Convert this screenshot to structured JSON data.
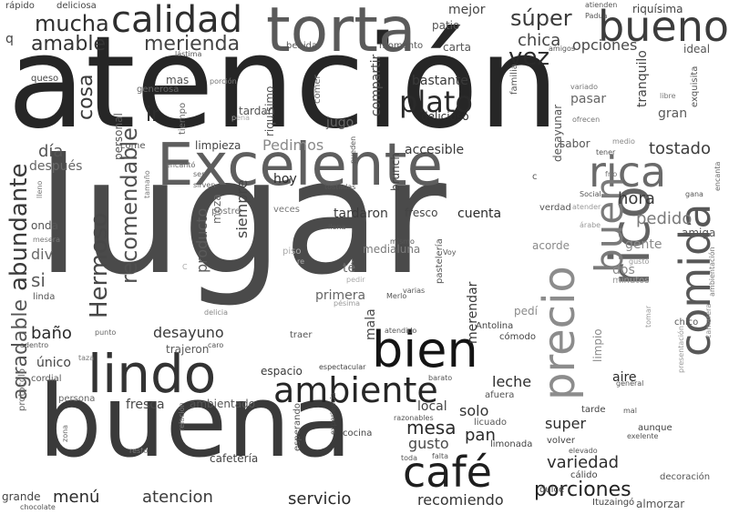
{
  "words": [
    {
      "text": "atención",
      "color": "#262626"
    },
    {
      "text": "lugar",
      "color": "#4a4a4a"
    },
    {
      "text": "buena",
      "color": "#3a3a3a"
    },
    {
      "text": "Excelente",
      "color": "#5e5e5e"
    },
    {
      "text": "torta",
      "color": "#5a5a5a"
    },
    {
      "text": "calidad",
      "color": "#2e2e2e"
    },
    {
      "text": "bueno",
      "color": "#3c3c3c"
    },
    {
      "text": "rica",
      "color": "#6a6a6a"
    },
    {
      "text": "bien",
      "color": "#141414"
    },
    {
      "text": "lindo",
      "color": "#333333"
    },
    {
      "text": "ambiente",
      "color": "#262626"
    },
    {
      "text": "café",
      "color": "#1e1e1e"
    },
    {
      "text": "rico",
      "color": "#626262"
    },
    {
      "text": "comida",
      "color": "#585858"
    },
    {
      "text": "precio",
      "color": "#8c8c8c"
    },
    {
      "text": "buen",
      "color": "#7a7a7a"
    },
    {
      "text": "abundante",
      "color": "#3a3a3a"
    },
    {
      "text": "Hermoso",
      "color": "#474747"
    },
    {
      "text": "recomendable",
      "color": "#505050"
    },
    {
      "text": "agradable",
      "color": "#555555"
    },
    {
      "text": "plato",
      "color": "#2a2a2a"
    },
    {
      "text": "mucha",
      "color": "#2f2f2f"
    },
    {
      "text": "amable",
      "color": "#333333"
    },
    {
      "text": "merienda",
      "color": "#454545"
    },
    {
      "text": "súper",
      "color": "#3a3a3a"
    },
    {
      "text": "vez",
      "color": "#2a2a2a"
    },
    {
      "text": "chica",
      "color": "#444444"
    },
    {
      "text": "opciones",
      "color": "#4a4a4a"
    },
    {
      "text": "tostado",
      "color": "#3d3d3d"
    },
    {
      "text": "pedido",
      "color": "#7a7a7a"
    },
    {
      "text": "hora",
      "color": "#3a3a3a"
    },
    {
      "text": "cosa",
      "color": "#3a3a3a"
    },
    {
      "text": "ir",
      "color": "#2c2c2c"
    },
    {
      "text": "día",
      "color": "#555555"
    },
    {
      "text": "después",
      "color": "#666666"
    },
    {
      "text": "Pedimos",
      "color": "#8a8a8a"
    },
    {
      "text": "hoy",
      "color": "#2a2a2a"
    },
    {
      "text": "siempre",
      "color": "#444444"
    },
    {
      "text": "producto",
      "color": "#5a5a5a"
    },
    {
      "text": "moza",
      "color": "#666666"
    },
    {
      "text": "desayuno",
      "color": "#3a3a3a"
    },
    {
      "text": "baño",
      "color": "#2a2a2a"
    },
    {
      "text": "si",
      "color": "#5a5a5a"
    },
    {
      "text": "div",
      "color": "#6a6a6a"
    },
    {
      "text": "mesa",
      "color": "#2a2a2a"
    },
    {
      "text": "pan",
      "color": "#2a2a2a"
    },
    {
      "text": "gusto",
      "color": "#4a4a4a"
    },
    {
      "text": "servicio",
      "color": "#2a2a2a"
    },
    {
      "text": "atencion",
      "color": "#3a3a3a"
    },
    {
      "text": "menú",
      "color": "#2a2a2a"
    },
    {
      "text": "porciones",
      "color": "#222222"
    },
    {
      "text": "recomiendo",
      "color": "#333333"
    },
    {
      "text": "variedad",
      "color": "#2d2d2d"
    },
    {
      "text": "super",
      "color": "#2d2d2d"
    },
    {
      "text": "solo",
      "color": "#333333"
    },
    {
      "text": "leche",
      "color": "#2d2d2d"
    },
    {
      "text": "espacio",
      "color": "#3a3a3a"
    },
    {
      "text": "fresca",
      "color": "#4a4a4a"
    },
    {
      "text": "aire",
      "color": "#2a2a2a"
    },
    {
      "text": "accesible",
      "color": "#3a3a3a"
    },
    {
      "text": "delicioso",
      "color": "#2a2a2a"
    },
    {
      "text": "bastante",
      "color": "#3a3a3a"
    },
    {
      "text": "compartir",
      "color": "#4a4a4a"
    },
    {
      "text": "jugo",
      "color": "#666666"
    },
    {
      "text": "tranquilo",
      "color": "#444444"
    },
    {
      "text": "gran",
      "color": "#5a5a5a"
    },
    {
      "text": "pasar",
      "color": "#666666"
    },
    {
      "text": "desayunar",
      "color": "#555555"
    },
    {
      "text": "limpieza",
      "color": "#444444"
    },
    {
      "text": "merendar",
      "color": "#3a3a3a"
    },
    {
      "text": "cuenta",
      "color": "#2a2a2a"
    },
    {
      "text": "tardaron",
      "color": "#3a3a3a"
    },
    {
      "text": "té",
      "color": "#6a6a6a"
    },
    {
      "text": "medialuna",
      "color": "#7a7a7a"
    },
    {
      "text": "primera",
      "color": "#666666"
    },
    {
      "text": "mala",
      "color": "#4a4a4a"
    },
    {
      "text": "trajeron",
      "color": "#5a5a5a"
    },
    {
      "text": "limpio",
      "color": "#8a8a8a"
    },
    {
      "text": "gente",
      "color": "#8a8a8a"
    },
    {
      "text": "dos",
      "color": "#8a8a8a"
    },
    {
      "text": "pedí",
      "color": "#8a8a8a"
    },
    {
      "text": "acorde",
      "color": "#8a8a8a"
    },
    {
      "text": "amiga",
      "color": "#555555"
    },
    {
      "text": "ambientado",
      "color": "#555555"
    },
    {
      "text": "cafetería",
      "color": "#444444"
    },
    {
      "text": "local",
      "color": "#444444"
    },
    {
      "text": "sabor",
      "color": "#555555"
    },
    {
      "text": "mejor",
      "color": "#444444"
    },
    {
      "text": "carta",
      "color": "#555555"
    },
    {
      "text": "patio",
      "color": "#555555"
    },
    {
      "text": "bebida",
      "color": "#555555"
    },
    {
      "text": "momento",
      "color": "#555555"
    },
    {
      "text": "riquísima",
      "color": "#444444"
    },
    {
      "text": "rápido",
      "color": "#444444"
    },
    {
      "text": "deliciosa",
      "color": "#444444"
    },
    {
      "text": "q",
      "color": "#444444"
    },
    {
      "text": "mas",
      "color": "#555555"
    },
    {
      "text": "generosa",
      "color": "#666666"
    },
    {
      "text": "queso",
      "color": "#444444"
    },
    {
      "text": "porción",
      "color": "#777777"
    },
    {
      "text": "riquísimo",
      "color": "#555555"
    },
    {
      "text": "comer",
      "color": "#666666"
    },
    {
      "text": "tardan",
      "color": "#555555"
    },
    {
      "text": "personal",
      "color": "#555555"
    },
    {
      "text": "come",
      "color": "#555555"
    },
    {
      "text": "encantó",
      "color": "#666666"
    },
    {
      "text": "tiempo",
      "color": "#666666"
    },
    {
      "text": "ideal",
      "color": "#555555"
    },
    {
      "text": "exquisita",
      "color": "#555555"
    },
    {
      "text": "libre",
      "color": "#777777"
    },
    {
      "text": "ofrecen",
      "color": "#777777"
    },
    {
      "text": "variado",
      "color": "#777777"
    },
    {
      "text": "medio",
      "color": "#888888"
    },
    {
      "text": "tener",
      "color": "#555555"
    },
    {
      "text": "frío",
      "color": "#777777"
    },
    {
      "text": "gana",
      "color": "#555555"
    },
    {
      "text": "encanta",
      "color": "#666666"
    },
    {
      "text": "brunch",
      "color": "#444444"
    },
    {
      "text": "fresco",
      "color": "#444444"
    },
    {
      "text": "verdad",
      "color": "#555555"
    },
    {
      "text": "veces",
      "color": "#777777"
    },
    {
      "text": "llena",
      "color": "#555555"
    },
    {
      "text": "pueden",
      "color": "#555555"
    },
    {
      "text": "tostadas",
      "color": "#555555"
    },
    {
      "text": "postre",
      "color": "#777777"
    },
    {
      "text": "sirven",
      "color": "#666666"
    },
    {
      "text": "ser",
      "color": "#666666"
    },
    {
      "text": "onda",
      "color": "#555555"
    },
    {
      "text": "lleno",
      "color": "#777777"
    },
    {
      "text": "tamaño",
      "color": "#777777"
    },
    {
      "text": "mesera",
      "color": "#777777"
    },
    {
      "text": "linda",
      "color": "#555555"
    },
    {
      "text": "punto",
      "color": "#666666"
    },
    {
      "text": "adentro",
      "color": "#555555"
    },
    {
      "text": "taza",
      "color": "#777777"
    },
    {
      "text": "único",
      "color": "#444444"
    },
    {
      "text": "cordial",
      "color": "#555555"
    },
    {
      "text": "persona",
      "color": "#666666"
    },
    {
      "text": "caro",
      "color": "#555555"
    },
    {
      "text": "traer",
      "color": "#555555"
    },
    {
      "text": "Antolina",
      "color": "#444444"
    },
    {
      "text": "cómodo",
      "color": "#444444"
    },
    {
      "text": "pastelería",
      "color": "#555555"
    },
    {
      "text": "Merlo",
      "color": "#555555"
    },
    {
      "text": "varias",
      "color": "#555555"
    },
    {
      "text": "atendido",
      "color": "#555555"
    },
    {
      "text": "espectacular",
      "color": "#444444"
    },
    {
      "text": "barato",
      "color": "#555555"
    },
    {
      "text": "afuera",
      "color": "#555555"
    },
    {
      "text": "licuado",
      "color": "#555555"
    },
    {
      "text": "cocina",
      "color": "#444444"
    },
    {
      "text": "razonables",
      "color": "#555555"
    },
    {
      "text": "limonada",
      "color": "#444444"
    },
    {
      "text": "falta",
      "color": "#555555"
    },
    {
      "text": "toda",
      "color": "#555555"
    },
    {
      "text": "dulce",
      "color": "#444444"
    },
    {
      "text": "cálido",
      "color": "#444444"
    },
    {
      "text": "decoración",
      "color": "#555555"
    },
    {
      "text": "almorzar",
      "color": "#555555"
    },
    {
      "text": "Ituzaingó",
      "color": "#444444"
    },
    {
      "text": "elevado",
      "color": "#555555"
    },
    {
      "text": "exelente",
      "color": "#555555"
    },
    {
      "text": "aunque",
      "color": "#444444"
    },
    {
      "text": "tarde",
      "color": "#444444"
    },
    {
      "text": "mal",
      "color": "#555555"
    },
    {
      "text": "general",
      "color": "#555555"
    },
    {
      "text": "volver",
      "color": "#444444"
    },
    {
      "text": "esperando",
      "color": "#555555"
    },
    {
      "text": "experiencia",
      "color": "#444444"
    },
    {
      "text": "relación",
      "color": "#777777"
    },
    {
      "text": "resto",
      "color": "#777777"
    },
    {
      "text": "zona",
      "color": "#666666"
    },
    {
      "text": "protocolo",
      "color": "#666666"
    },
    {
      "text": "grande",
      "color": "#444444"
    },
    {
      "text": "chocolate",
      "color": "#555555"
    },
    {
      "text": "chico",
      "color": "#555555"
    },
    {
      "text": "ambientación",
      "color": "#777777"
    },
    {
      "text": "minutos",
      "color": "#999999"
    },
    {
      "text": "gustó",
      "color": "#999999"
    },
    {
      "text": "árabe",
      "color": "#999999"
    },
    {
      "text": "atender",
      "color": "#999999"
    },
    {
      "text": "Social",
      "color": "#555555"
    },
    {
      "text": "tomar",
      "color": "#999999"
    },
    {
      "text": "camarera",
      "color": "#888888"
    },
    {
      "text": "presentación",
      "color": "#999999"
    },
    {
      "text": "mismo",
      "color": "#555555"
    },
    {
      "text": "piso",
      "color": "#aaaaaa"
    },
    {
      "text": "re",
      "color": "#aaaaaa"
    },
    {
      "text": "pedir",
      "color": "#aaaaaa"
    },
    {
      "text": "pésima",
      "color": "#999999"
    },
    {
      "text": "Voy",
      "color": "#555555"
    },
    {
      "text": "delicia",
      "color": "#888888"
    },
    {
      "text": "pena",
      "color": "#aaaaaa"
    },
    {
      "text": "familia",
      "color": "#555555"
    },
    {
      "text": "amigos",
      "color": "#555555"
    },
    {
      "text": "lástima",
      "color": "#555555"
    },
    {
      "text": "Padua",
      "color": "#555555"
    },
    {
      "text": "atienden",
      "color": "#555555"
    },
    {
      "text": "C",
      "color": "#aaaaaa"
    },
    {
      "text": "c",
      "color": "#555555"
    }
  ]
}
